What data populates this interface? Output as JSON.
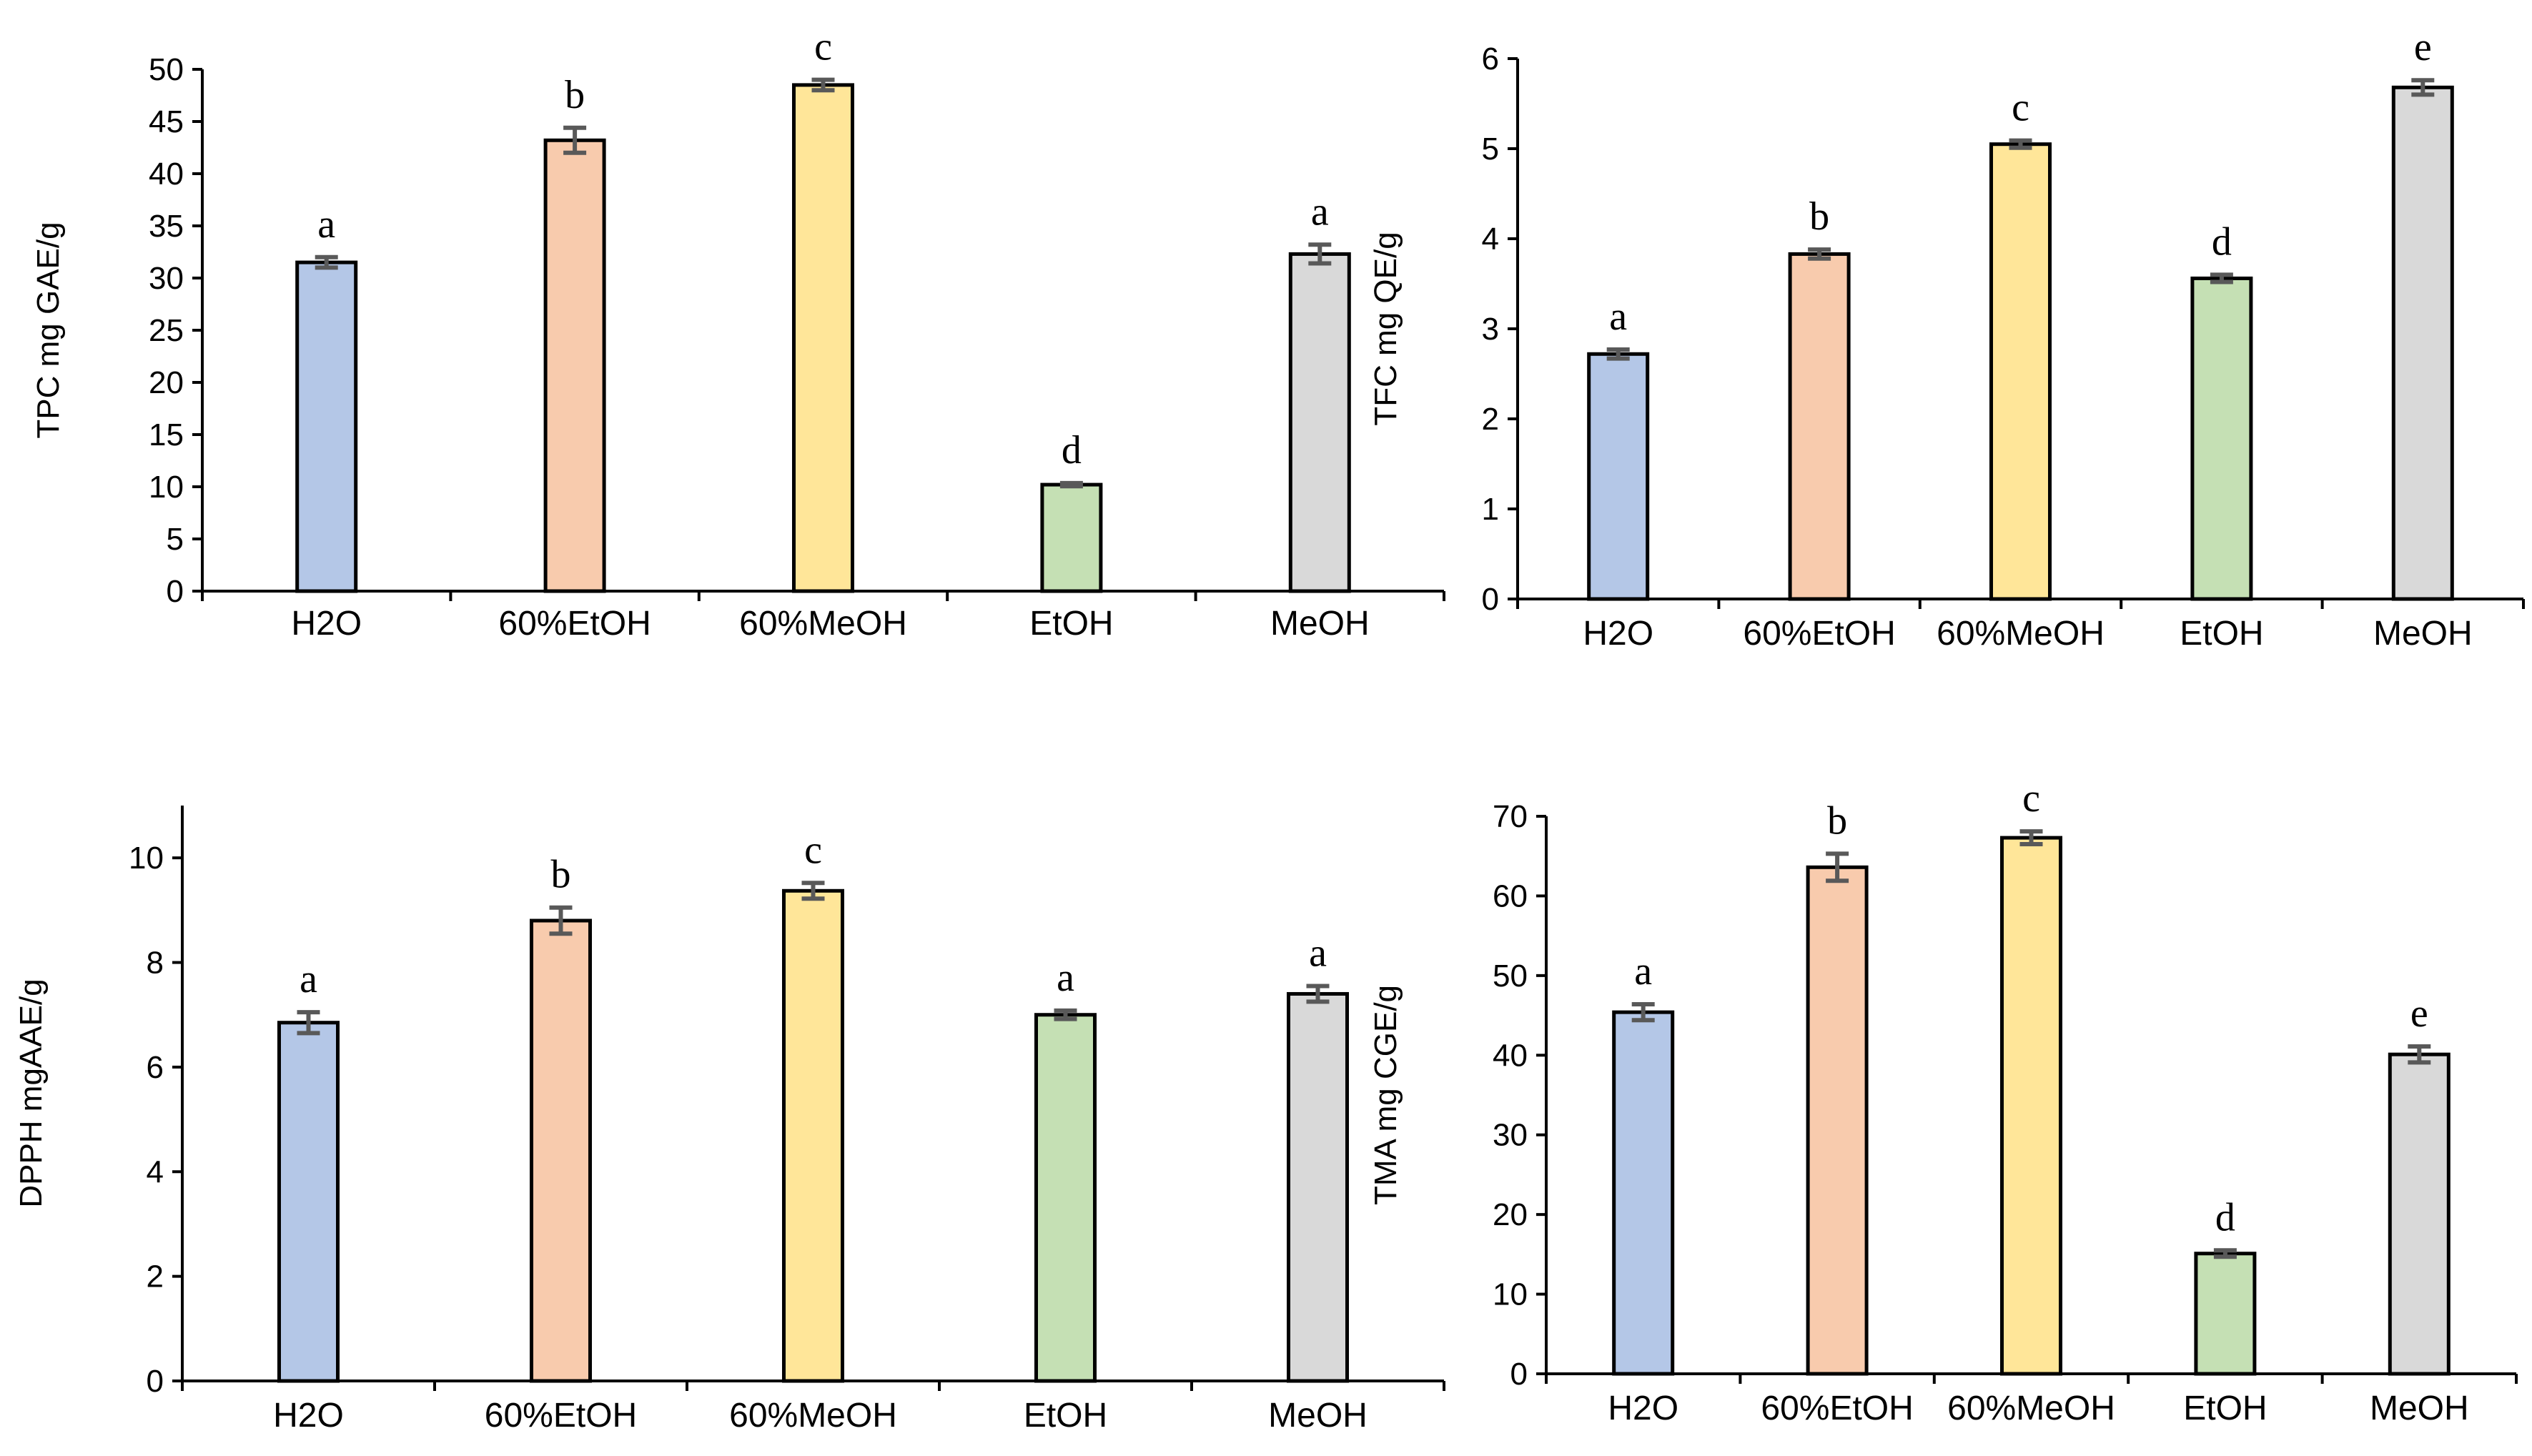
{
  "colors": {
    "bars": [
      "#b4c7e7",
      "#f8cbad",
      "#ffe699",
      "#c5e0b4",
      "#d9d9d9"
    ],
    "bar_stroke": "#000000",
    "error_bar": "#595959",
    "axis": "#000000"
  },
  "chart_data": [
    {
      "type": "bar",
      "categories": [
        "H2O",
        "60%EtOH",
        "60%MeOH",
        "EtOH",
        "MeOH"
      ],
      "values": [
        31.5,
        43.2,
        48.5,
        10.2,
        32.3
      ],
      "errors": [
        0.5,
        1.2,
        0.5,
        0.15,
        0.9
      ],
      "significance": [
        "a",
        "b",
        "c",
        "d",
        "a"
      ],
      "ylabel": "TPC mg GAE/g",
      "xlabel": "",
      "ylim": [
        0,
        50
      ],
      "yticks": [
        0,
        5,
        10,
        15,
        20,
        25,
        30,
        35,
        40,
        45,
        50
      ]
    },
    {
      "type": "bar",
      "categories": [
        "H2O",
        "60%EtOH",
        "60%MeOH",
        "EtOH",
        "MeOH"
      ],
      "values": [
        2.72,
        3.83,
        5.05,
        3.56,
        5.68
      ],
      "errors": [
        0.05,
        0.05,
        0.04,
        0.04,
        0.08
      ],
      "significance": [
        "a",
        "b",
        "c",
        "d",
        "e"
      ],
      "ylabel": "TFC mg QE/g",
      "xlabel": "",
      "ylim": [
        0,
        6
      ],
      "yticks": [
        0,
        1,
        2,
        3,
        4,
        5,
        6
      ]
    },
    {
      "type": "bar",
      "categories": [
        "H2O",
        "60%EtOH",
        "60%MeOH",
        "EtOH",
        "MeOH"
      ],
      "values": [
        6.85,
        8.8,
        9.37,
        7.0,
        7.4
      ],
      "errors": [
        0.2,
        0.25,
        0.15,
        0.08,
        0.15
      ],
      "significance": [
        "a",
        "b",
        "c",
        "a",
        "a"
      ],
      "ylabel": "DPPH mgAAE/g",
      "xlabel": "",
      "ylim": [
        0,
        11
      ],
      "yticks": [
        0,
        2,
        4,
        6,
        8,
        10
      ]
    },
    {
      "type": "bar",
      "categories": [
        "H2O",
        "60%EtOH",
        "60%MeOH",
        "EtOH",
        "MeOH"
      ],
      "values": [
        45.4,
        63.6,
        67.3,
        15.1,
        40.1
      ],
      "errors": [
        1.0,
        1.7,
        0.8,
        0.4,
        1.0
      ],
      "significance": [
        "a",
        "b",
        "c",
        "d",
        "e"
      ],
      "ylabel": "TMA mg CGE/g",
      "xlabel": "",
      "ylim": [
        0,
        70
      ],
      "yticks": [
        0,
        10,
        20,
        30,
        40,
        50,
        60,
        70
      ]
    }
  ]
}
